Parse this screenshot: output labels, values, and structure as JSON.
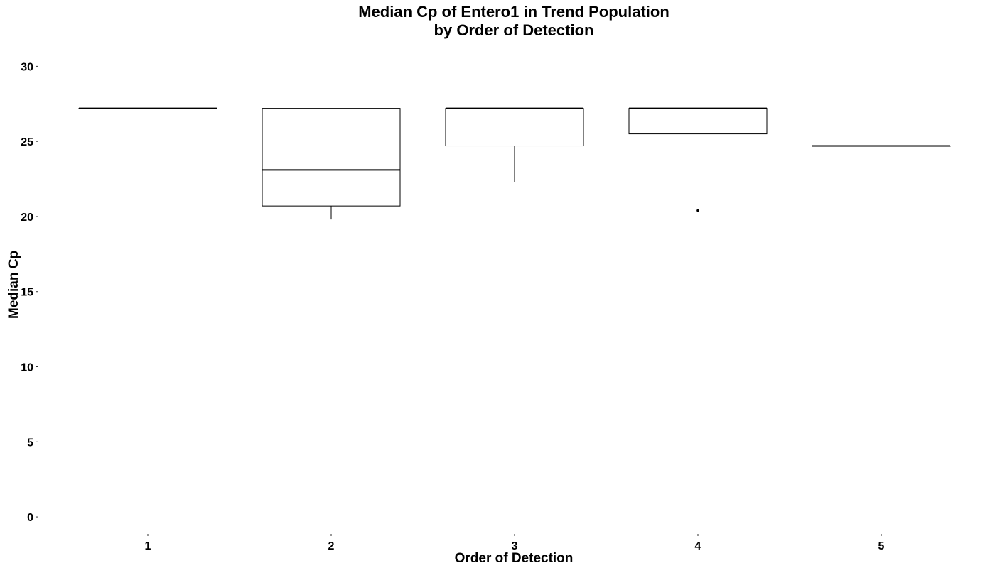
{
  "chart_data": {
    "type": "boxplot",
    "title": "Median Cp of Entero1 in Trend Population",
    "subtitle": "by Order of Detection",
    "xlabel": "Order of Detection",
    "ylabel": "Median Cp",
    "ylim": [
      -0.8,
      31.2
    ],
    "y_ticks": [
      0,
      5,
      10,
      15,
      20,
      25,
      30
    ],
    "categories": [
      "1",
      "2",
      "3",
      "4",
      "5"
    ],
    "boxes": [
      {
        "category": "1",
        "whisker_low": 27.2,
        "q1": 27.2,
        "median": 27.2,
        "q3": 27.2,
        "whisker_high": 27.2,
        "outliers": []
      },
      {
        "category": "2",
        "whisker_low": 19.8,
        "q1": 20.7,
        "median": 23.1,
        "q3": 27.2,
        "whisker_high": 27.2,
        "outliers": []
      },
      {
        "category": "3",
        "whisker_low": 22.3,
        "q1": 24.7,
        "median": 27.2,
        "q3": 27.2,
        "whisker_high": 27.2,
        "outliers": []
      },
      {
        "category": "4",
        "whisker_low": 25.5,
        "q1": 25.5,
        "median": 27.2,
        "q3": 27.2,
        "whisker_high": 27.2,
        "outliers": [
          20.4
        ]
      },
      {
        "category": "5",
        "whisker_low": 24.7,
        "q1": 24.7,
        "median": 24.7,
        "q3": 24.7,
        "whisker_high": 24.7,
        "outliers": []
      }
    ],
    "grid": false,
    "legend": "none",
    "colors": {
      "box_fill": "#ffffff",
      "stroke": "#000000"
    }
  }
}
